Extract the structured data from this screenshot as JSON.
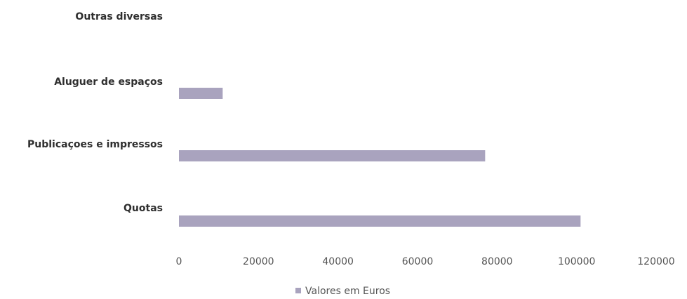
{
  "chart_data": {
    "type": "bar",
    "orientation": "horizontal",
    "categories": [
      "Outras diversas",
      "Aluguer de espaços",
      "Publicaçoes e impressos",
      "Quotas"
    ],
    "series": [
      {
        "name": "Valores em Euros",
        "values": [
          0,
          11000,
          77000,
          101000
        ],
        "color": "#a9a3be"
      }
    ],
    "xlim": [
      0,
      120000
    ],
    "xticks": [
      "0",
      "20000",
      "40000",
      "60000",
      "80000",
      "100000",
      "120000"
    ],
    "grid": false,
    "legend": "bottom"
  }
}
